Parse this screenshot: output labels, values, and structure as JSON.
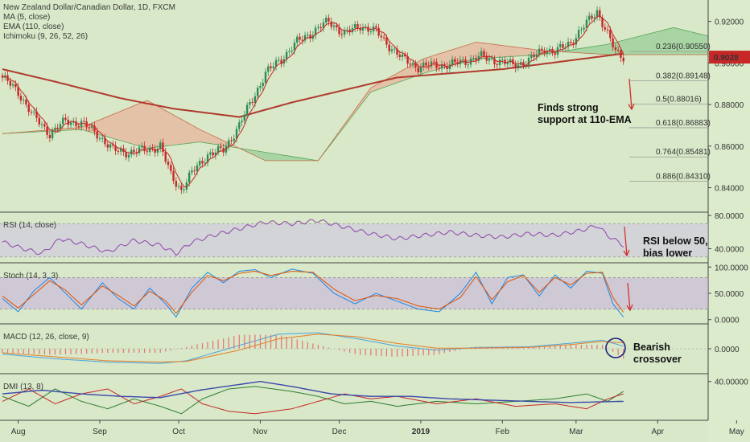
{
  "colors": {
    "background": "#d8e8c8",
    "up_candle": "#2e8b57",
    "down_candle": "#c62828",
    "ema": "#b03a2e",
    "ma": "#c62828",
    "cloud_bull": "#9ccf9a",
    "cloud_bear": "#e7b8a0",
    "rsi_line": "#8e44ad",
    "stoch_k": "#1e88e5",
    "stoch_d": "#e65100",
    "macd_line": "#4aa3df",
    "signal_line": "#e67e22",
    "hist": "#e57373",
    "dmi_plus": "#2e7d32",
    "dmi_minus": "#c62828",
    "adx": "#3949ab",
    "price_tag": "#c62828",
    "fib_mid": "#1e88e5"
  },
  "chart_data": [
    {
      "type": "candlestick",
      "title": "New Zealand Dollar/Canadian Dollar, 1D, FXCM",
      "indicators": [
        "MA (5, close)",
        "EMA (110, close)",
        "Ichimoku (9, 26, 52, 26)"
      ],
      "ylim": [
        0.829,
        0.9295
      ],
      "yticks": [
        "0.92000",
        "0.90000",
        "0.88000",
        "0.86000",
        "0.84000"
      ],
      "last_price": "0.9028",
      "xlabels": [
        "Aug",
        "Sep",
        "Oct",
        "Nov",
        "Dec",
        "2019",
        "Feb",
        "Mar",
        "Apr",
        "May"
      ],
      "anchors": [
        [
          0,
          0.893
        ],
        [
          6,
          0.886
        ],
        [
          12,
          0.874
        ],
        [
          18,
          0.866
        ],
        [
          24,
          0.872
        ],
        [
          30,
          0.871
        ],
        [
          36,
          0.866
        ],
        [
          42,
          0.858
        ],
        [
          48,
          0.857
        ],
        [
          54,
          0.858
        ],
        [
          60,
          0.86
        ],
        [
          64,
          0.846
        ],
        [
          68,
          0.839
        ],
        [
          72,
          0.847
        ],
        [
          78,
          0.856
        ],
        [
          84,
          0.858
        ],
        [
          90,
          0.87
        ],
        [
          96,
          0.885
        ],
        [
          100,
          0.895
        ],
        [
          106,
          0.902
        ],
        [
          112,
          0.91
        ],
        [
          118,
          0.915
        ],
        [
          124,
          0.92
        ],
        [
          130,
          0.914
        ],
        [
          136,
          0.918
        ],
        [
          142,
          0.915
        ],
        [
          148,
          0.907
        ],
        [
          152,
          0.902
        ],
        [
          158,
          0.898
        ],
        [
          164,
          0.899
        ],
        [
          170,
          0.899
        ],
        [
          176,
          0.901
        ],
        [
          182,
          0.903
        ],
        [
          188,
          0.901
        ],
        [
          194,
          0.899
        ],
        [
          200,
          0.901
        ],
        [
          206,
          0.907
        ],
        [
          210,
          0.905
        ],
        [
          216,
          0.91
        ],
        [
          222,
          0.919
        ],
        [
          226,
          0.925
        ],
        [
          230,
          0.914
        ],
        [
          233,
          0.905
        ],
        [
          236,
          0.903
        ]
      ],
      "ema_110": [
        [
          0,
          0.897
        ],
        [
          20,
          0.891
        ],
        [
          45,
          0.883
        ],
        [
          65,
          0.878
        ],
        [
          90,
          0.874
        ],
        [
          110,
          0.881
        ],
        [
          150,
          0.893
        ],
        [
          190,
          0.897
        ],
        [
          236,
          0.9045
        ]
      ],
      "cloud_a": [
        [
          0,
          0.866
        ],
        [
          30,
          0.868
        ],
        [
          55,
          0.859
        ],
        [
          75,
          0.862
        ],
        [
          100,
          0.857
        ],
        [
          120,
          0.853
        ],
        [
          140,
          0.886
        ],
        [
          160,
          0.895
        ],
        [
          180,
          0.902
        ],
        [
          205,
          0.904
        ],
        [
          230,
          0.909
        ],
        [
          255,
          0.917
        ],
        [
          268,
          0.913
        ]
      ],
      "cloud_b": [
        [
          0,
          0.866
        ],
        [
          30,
          0.869
        ],
        [
          55,
          0.882
        ],
        [
          75,
          0.868
        ],
        [
          100,
          0.853
        ],
        [
          120,
          0.853
        ],
        [
          140,
          0.888
        ],
        [
          160,
          0.902
        ],
        [
          180,
          0.91
        ],
        [
          205,
          0.906
        ],
        [
          230,
          0.904
        ],
        [
          255,
          0.904
        ],
        [
          268,
          0.904
        ]
      ],
      "fib_levels": [
        {
          "label": "0.236(0.90550)",
          "value": 0.9055
        },
        {
          "label": "0.382(0.89148)",
          "value": 0.89148
        },
        {
          "label": "0.5(0.88016)",
          "value": 0.88016
        },
        {
          "label": "0.618(0.86883)",
          "value": 0.86883
        },
        {
          "label": "0.764(0.85481)",
          "value": 0.85481
        },
        {
          "label": "0.886(0.84310)",
          "value": 0.8431
        }
      ],
      "annotation": [
        "Finds strong",
        "support at 110-EMA"
      ]
    },
    {
      "type": "line",
      "title": "RSI (14, close)",
      "ylim": [
        25,
        82
      ],
      "band": [
        30,
        70
      ],
      "yticks": [
        "80.0000",
        "40.0000"
      ],
      "values": [
        [
          0,
          48
        ],
        [
          8,
          40
        ],
        [
          15,
          34
        ],
        [
          22,
          52
        ],
        [
          30,
          46
        ],
        [
          40,
          36
        ],
        [
          50,
          50
        ],
        [
          60,
          44
        ],
        [
          66,
          34
        ],
        [
          72,
          48
        ],
        [
          80,
          56
        ],
        [
          90,
          64
        ],
        [
          100,
          72
        ],
        [
          110,
          70
        ],
        [
          120,
          74
        ],
        [
          130,
          66
        ],
        [
          140,
          58
        ],
        [
          150,
          52
        ],
        [
          160,
          56
        ],
        [
          170,
          60
        ],
        [
          180,
          56
        ],
        [
          190,
          54
        ],
        [
          200,
          58
        ],
        [
          210,
          56
        ],
        [
          220,
          62
        ],
        [
          226,
          68
        ],
        [
          230,
          56
        ],
        [
          236,
          44
        ]
      ],
      "annotation": [
        "RSI below 50,",
        "bias lower"
      ]
    },
    {
      "type": "line",
      "title": "Stoch (14, 3, 3)",
      "ylim": [
        -5,
        105
      ],
      "band": [
        20,
        80
      ],
      "yticks": [
        "100.0000",
        "50.0000",
        "0.0000"
      ],
      "series": [
        {
          "values": [
            [
              0,
              40
            ],
            [
              6,
              15
            ],
            [
              12,
              55
            ],
            [
              18,
              80
            ],
            [
              24,
              50
            ],
            [
              30,
              20
            ],
            [
              38,
              70
            ],
            [
              44,
              40
            ],
            [
              50,
              20
            ],
            [
              56,
              60
            ],
            [
              62,
              30
            ],
            [
              66,
              5
            ],
            [
              72,
              60
            ],
            [
              78,
              90
            ],
            [
              84,
              70
            ],
            [
              90,
              92
            ],
            [
              96,
              95
            ],
            [
              102,
              80
            ],
            [
              110,
              96
            ],
            [
              118,
              88
            ],
            [
              126,
              50
            ],
            [
              134,
              30
            ],
            [
              142,
              50
            ],
            [
              150,
              35
            ],
            [
              158,
              20
            ],
            [
              166,
              15
            ],
            [
              174,
              50
            ],
            [
              180,
              90
            ],
            [
              186,
              30
            ],
            [
              192,
              80
            ],
            [
              198,
              85
            ],
            [
              204,
              45
            ],
            [
              210,
              85
            ],
            [
              216,
              60
            ],
            [
              222,
              92
            ],
            [
              228,
              88
            ],
            [
              232,
              30
            ],
            [
              236,
              5
            ]
          ]
        },
        {
          "values": [
            [
              0,
              45
            ],
            [
              6,
              22
            ],
            [
              12,
              48
            ],
            [
              18,
              74
            ],
            [
              24,
              56
            ],
            [
              30,
              28
            ],
            [
              38,
              64
            ],
            [
              44,
              46
            ],
            [
              50,
              26
            ],
            [
              56,
              54
            ],
            [
              62,
              36
            ],
            [
              66,
              12
            ],
            [
              72,
              52
            ],
            [
              78,
              84
            ],
            [
              84,
              74
            ],
            [
              90,
              88
            ],
            [
              96,
              92
            ],
            [
              102,
              84
            ],
            [
              110,
              92
            ],
            [
              118,
              90
            ],
            [
              126,
              58
            ],
            [
              134,
              36
            ],
            [
              142,
              46
            ],
            [
              150,
              40
            ],
            [
              158,
              26
            ],
            [
              166,
              20
            ],
            [
              174,
              42
            ],
            [
              180,
              82
            ],
            [
              186,
              38
            ],
            [
              192,
              72
            ],
            [
              198,
              84
            ],
            [
              204,
              52
            ],
            [
              210,
              80
            ],
            [
              216,
              66
            ],
            [
              222,
              88
            ],
            [
              228,
              90
            ],
            [
              232,
              42
            ],
            [
              236,
              14
            ]
          ]
        }
      ]
    },
    {
      "type": "line",
      "title": "MACD (12, 26, close, 9)",
      "ylim": [
        -0.0035,
        0.0035
      ],
      "yticks": [
        "0.0000"
      ],
      "series": [
        {
          "name": "",
          "values": [
            [
              0,
              -0.0008
            ],
            [
              20,
              -0.0015
            ],
            [
              40,
              -0.002
            ],
            [
              60,
              -0.0022
            ],
            [
              70,
              -0.0018
            ],
            [
              90,
              0.0005
            ],
            [
              105,
              0.0022
            ],
            [
              120,
              0.0024
            ],
            [
              135,
              0.0015
            ],
            [
              150,
              0.0004
            ],
            [
              165,
              -0.0002
            ],
            [
              180,
              0.0002
            ],
            [
              200,
              0.0003
            ],
            [
              215,
              0.0008
            ],
            [
              228,
              0.0013
            ],
            [
              236,
              0.0004
            ]
          ]
        },
        {
          "name": "",
          "values": [
            [
              0,
              -0.0006
            ],
            [
              20,
              -0.0012
            ],
            [
              40,
              -0.0018
            ],
            [
              60,
              -0.002
            ],
            [
              70,
              -0.0019
            ],
            [
              90,
              -0.0002
            ],
            [
              105,
              0.0015
            ],
            [
              120,
              0.0022
            ],
            [
              135,
              0.0018
            ],
            [
              150,
              0.0008
            ],
            [
              165,
              0.0001
            ],
            [
              180,
              0.0001
            ],
            [
              200,
              0.0002
            ],
            [
              215,
              0.0006
            ],
            [
              228,
              0.0011
            ],
            [
              236,
              0.0009
            ]
          ]
        }
      ],
      "annotation": [
        "Bearish",
        "crossover"
      ]
    },
    {
      "type": "line",
      "title": "DMI (13, 8)",
      "ylim": [
        10,
        45
      ],
      "yticks": [
        "40.00000"
      ],
      "series": [
        {
          "values": [
            [
              0,
              28
            ],
            [
              10,
              20
            ],
            [
              20,
              34
            ],
            [
              30,
              24
            ],
            [
              40,
              18
            ],
            [
              50,
              26
            ],
            [
              60,
              20
            ],
            [
              68,
              14
            ],
            [
              76,
              26
            ],
            [
              86,
              34
            ],
            [
              96,
              36
            ],
            [
              110,
              32
            ],
            [
              120,
              28
            ],
            [
              130,
              22
            ],
            [
              140,
              24
            ],
            [
              150,
              20
            ],
            [
              165,
              24
            ],
            [
              180,
              22
            ],
            [
              195,
              24
            ],
            [
              210,
              26
            ],
            [
              222,
              30
            ],
            [
              230,
              24
            ],
            [
              236,
              32
            ]
          ]
        },
        {
          "values": [
            [
              0,
              24
            ],
            [
              10,
              34
            ],
            [
              20,
              22
            ],
            [
              30,
              30
            ],
            [
              40,
              34
            ],
            [
              50,
              22
            ],
            [
              60,
              28
            ],
            [
              68,
              34
            ],
            [
              76,
              22
            ],
            [
              86,
              16
            ],
            [
              96,
              14
            ],
            [
              110,
              18
            ],
            [
              120,
              24
            ],
            [
              130,
              30
            ],
            [
              140,
              26
            ],
            [
              150,
              28
            ],
            [
              165,
              22
            ],
            [
              180,
              26
            ],
            [
              195,
              20
            ],
            [
              210,
              22
            ],
            [
              222,
              18
            ],
            [
              230,
              26
            ],
            [
              236,
              30
            ]
          ]
        },
        {
          "values": [
            [
              0,
              30
            ],
            [
              15,
              33
            ],
            [
              30,
              30
            ],
            [
              45,
              28
            ],
            [
              60,
              27
            ],
            [
              75,
              33
            ],
            [
              88,
              37
            ],
            [
              98,
              40
            ],
            [
              110,
              36
            ],
            [
              125,
              30
            ],
            [
              140,
              28
            ],
            [
              155,
              28
            ],
            [
              170,
              26
            ],
            [
              185,
              25
            ],
            [
              200,
              24
            ],
            [
              215,
              23
            ],
            [
              236,
              24
            ]
          ]
        }
      ]
    }
  ]
}
